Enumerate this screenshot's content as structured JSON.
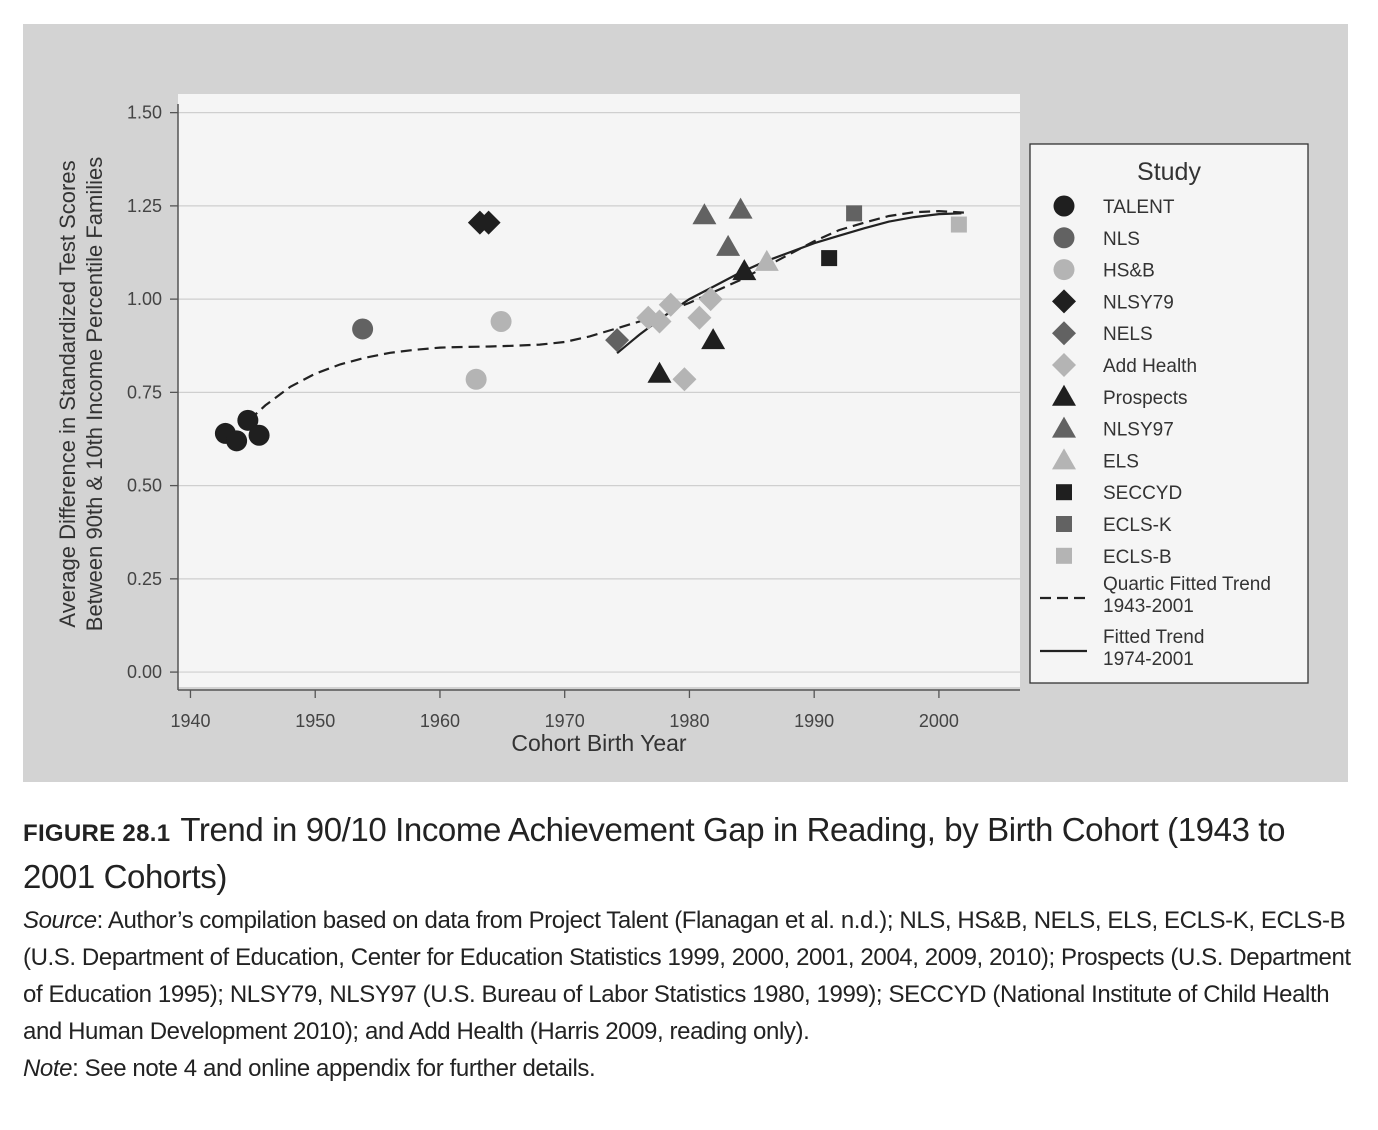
{
  "chart_data": {
    "type": "scatter",
    "title": "",
    "xlabel": "Cohort Birth Year",
    "ylabel": [
      "Average Difference in Standardized Test Scores",
      "Between 90th & 10th Income Percentile Families"
    ],
    "xlim": [
      1939,
      2006.5
    ],
    "ylim": [
      -0.04,
      1.55
    ],
    "x_ticks": [
      1940,
      1950,
      1960,
      1970,
      1980,
      1990,
      2000
    ],
    "y_ticks": [
      0.0,
      0.25,
      0.5,
      0.75,
      1.0,
      1.25,
      1.5
    ],
    "y_tick_labels": [
      "0.00",
      "0.25",
      "0.50",
      "0.75",
      "1.00",
      "1.25",
      "1.50"
    ],
    "grid": "horizontal",
    "legend_title": "Study",
    "legend_position": "right",
    "series": [
      {
        "name": "TALENT",
        "marker": "circle",
        "color": "#1f1f1f",
        "points": [
          [
            1942.8,
            0.64
          ],
          [
            1943.7,
            0.62
          ],
          [
            1944.6,
            0.675
          ],
          [
            1945.5,
            0.635
          ]
        ]
      },
      {
        "name": "NLS",
        "marker": "circle",
        "color": "#626262",
        "points": [
          [
            1953.8,
            0.92
          ]
        ]
      },
      {
        "name": "HS&B",
        "marker": "circle",
        "color": "#b4b4b4",
        "points": [
          [
            1962.9,
            0.785
          ],
          [
            1964.9,
            0.94
          ]
        ]
      },
      {
        "name": "NLSY79",
        "marker": "diamond",
        "color": "#1f1f1f",
        "points": [
          [
            1963.2,
            1.205
          ],
          [
            1963.9,
            1.205
          ]
        ]
      },
      {
        "name": "NELS",
        "marker": "diamond",
        "color": "#626262",
        "points": [
          [
            1974.2,
            0.89
          ]
        ]
      },
      {
        "name": "Add Health",
        "marker": "diamond",
        "color": "#b4b4b4",
        "points": [
          [
            1976.7,
            0.95
          ],
          [
            1977.6,
            0.94
          ],
          [
            1978.5,
            0.985
          ],
          [
            1979.6,
            0.785
          ],
          [
            1980.8,
            0.95
          ],
          [
            1981.7,
            1.0
          ]
        ]
      },
      {
        "name": "Prospects",
        "marker": "triangle",
        "color": "#1f1f1f",
        "points": [
          [
            1977.6,
            0.8
          ],
          [
            1981.9,
            0.89
          ],
          [
            1984.4,
            1.075
          ]
        ]
      },
      {
        "name": "NLSY97",
        "marker": "triangle",
        "color": "#626262",
        "points": [
          [
            1981.2,
            1.225
          ],
          [
            1983.1,
            1.14
          ],
          [
            1984.1,
            1.24
          ]
        ]
      },
      {
        "name": "ELS",
        "marker": "triangle",
        "color": "#b4b4b4",
        "points": [
          [
            1986.2,
            1.1
          ]
        ]
      },
      {
        "name": "SECCYD",
        "marker": "square",
        "color": "#1f1f1f",
        "points": [
          [
            1991.2,
            1.11
          ]
        ]
      },
      {
        "name": "ECLS-K",
        "marker": "square",
        "color": "#626262",
        "points": [
          [
            1993.2,
            1.23
          ]
        ]
      },
      {
        "name": "ECLS-B",
        "marker": "square",
        "color": "#b4b4b4",
        "points": [
          [
            2001.6,
            1.2
          ]
        ]
      }
    ],
    "trend_lines": [
      {
        "name": "Quartic Fitted Trend\n1943-2001",
        "style": "dashed",
        "color": "#222222",
        "x": [
          1944.7,
          1946,
          1948,
          1950,
          1952,
          1954,
          1956,
          1958,
          1960,
          1962,
          1964,
          1966,
          1968,
          1970,
          1972,
          1974,
          1976,
          1978,
          1980,
          1982,
          1984,
          1986,
          1988,
          1990,
          1992,
          1994,
          1996,
          1998,
          2000,
          2002
        ],
        "y": [
          0.675,
          0.715,
          0.765,
          0.8,
          0.825,
          0.843,
          0.856,
          0.864,
          0.87,
          0.872,
          0.873,
          0.875,
          0.878,
          0.885,
          0.9,
          0.92,
          0.94,
          0.965,
          0.99,
          1.02,
          1.05,
          1.085,
          1.12,
          1.155,
          1.185,
          1.205,
          1.223,
          1.233,
          1.236,
          1.232
        ]
      },
      {
        "name": "Fitted Trend\n1974-2001",
        "style": "solid",
        "color": "#222222",
        "x": [
          1974.2,
          1976,
          1978,
          1980,
          1982,
          1984,
          1986,
          1988,
          1990,
          1992,
          1994,
          1996,
          1998,
          2000,
          2001.8
        ],
        "y": [
          0.855,
          0.905,
          0.955,
          1.0,
          1.035,
          1.07,
          1.1,
          1.125,
          1.15,
          1.17,
          1.19,
          1.208,
          1.22,
          1.228,
          1.23
        ]
      }
    ]
  },
  "caption": {
    "figure_label": "FIGURE 28.1",
    "figure_title": "Trend in 90/10 Income Achievement Gap in Reading, by Birth Cohort (1943 to 2001 Cohorts)",
    "source_label": "Source",
    "source_text": ": Author’s compilation based on data from Project Talent (Flanagan et al. n.d.); NLS, HS&B, NELS, ELS, ECLS-K, ECLS-B (U.S. Department of Education, Center for Education Statistics 1999, 2000, 2001, 2004, 2009, 2010); Prospects (U.S. Department of Education 1995); NLSY79, NLSY97 (U.S. Bureau of Labor Statistics 1980, 1999); SECCYD (National Institute of Child Health and Human Development 2010); and Add Health (Harris 2009, reading only).",
    "note_label": "Note",
    "note_text": ": See note 4 and online appendix for further details."
  }
}
